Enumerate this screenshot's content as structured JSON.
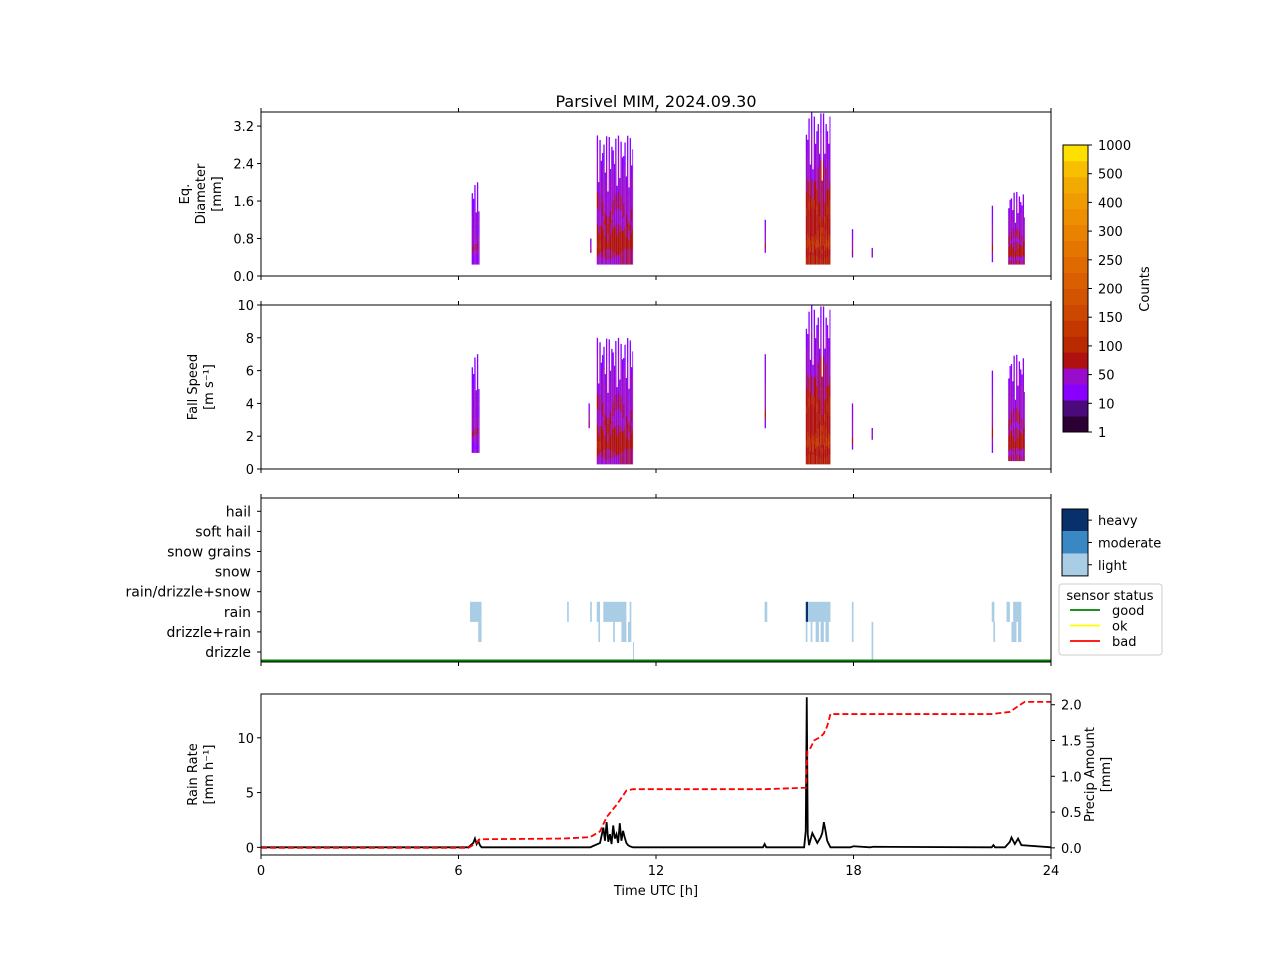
{
  "title": "Parsivel MIM, 2024.09.30",
  "colors": {
    "cmap": [
      "#2d0033",
      "#4a0a7a",
      "#8a00ff",
      "#9a0ccc",
      "#b01010",
      "#b92a00",
      "#c43800",
      "#cc4700",
      "#d35400",
      "#d95f00",
      "#df6a00",
      "#e47600",
      "#e98200",
      "#ed8f00",
      "#f09c00",
      "#f3aa00",
      "#f7bf00",
      "#fde000"
    ],
    "intensity": {
      "light": "#a8cde4",
      "moderate": "#3a88c3",
      "heavy": "#08306b"
    },
    "status": {
      "good": "#008000",
      "ok": "#ffff00",
      "bad": "#ff0000"
    },
    "rain_rate_line": "#000000",
    "precip_amount_line": "#ff0000"
  },
  "colorbar": {
    "label": "Counts",
    "ticks": [
      "1",
      "10",
      "50",
      "100",
      "150",
      "200",
      "250",
      "300",
      "400",
      "500",
      "1000"
    ]
  },
  "intensity_legend": {
    "labels": [
      "heavy",
      "moderate",
      "light"
    ]
  },
  "status_legend": {
    "title": "sensor status",
    "labels": [
      "good",
      "ok",
      "bad"
    ]
  },
  "chart_data": [
    {
      "type": "heatmap",
      "panel": "eq-diameter",
      "ylabel": [
        "Eq.",
        "Diameter",
        "[mm]"
      ],
      "xlim": [
        0,
        24
      ],
      "ylim": [
        0,
        3.5
      ],
      "yticks": [
        "0.0",
        "0.8",
        "1.6",
        "2.4",
        "3.2"
      ],
      "events": [
        {
          "t0": 6.4,
          "t1": 6.65,
          "vmin": 0.25,
          "vmax": 2.0,
          "level": 3
        },
        {
          "t0": 10.0,
          "t1": 10.05,
          "vmin": 0.5,
          "vmax": 0.8,
          "level": 3
        },
        {
          "t0": 10.2,
          "t1": 11.3,
          "vmin": 0.25,
          "vmax": 3.0,
          "level": 4
        },
        {
          "t0": 15.3,
          "t1": 15.35,
          "vmin": 0.5,
          "vmax": 1.2,
          "level": 3
        },
        {
          "t0": 16.55,
          "t1": 17.3,
          "vmin": 0.25,
          "vmax": 3.5,
          "level": 5
        },
        {
          "t0": 17.95,
          "t1": 18.0,
          "vmin": 0.4,
          "vmax": 1.0,
          "level": 3
        },
        {
          "t0": 18.55,
          "t1": 18.6,
          "vmin": 0.4,
          "vmax": 0.6,
          "level": 3
        },
        {
          "t0": 22.2,
          "t1": 22.25,
          "vmin": 0.3,
          "vmax": 1.5,
          "level": 3
        },
        {
          "t0": 22.7,
          "t1": 23.2,
          "vmin": 0.25,
          "vmax": 1.8,
          "level": 4
        }
      ]
    },
    {
      "type": "heatmap",
      "panel": "fall-speed",
      "ylabel": [
        "Fall Speed",
        "[m s⁻¹]"
      ],
      "xlim": [
        0,
        24
      ],
      "ylim": [
        0,
        10
      ],
      "yticks": [
        "0",
        "2",
        "4",
        "6",
        "8",
        "10"
      ],
      "events": [
        {
          "t0": 6.4,
          "t1": 6.65,
          "vmin": 1.0,
          "vmax": 7.0,
          "level": 3
        },
        {
          "t0": 9.95,
          "t1": 10.0,
          "vmin": 2.5,
          "vmax": 4.0,
          "level": 3
        },
        {
          "t0": 10.2,
          "t1": 11.3,
          "vmin": 0.3,
          "vmax": 8.0,
          "level": 4
        },
        {
          "t0": 15.3,
          "t1": 15.35,
          "vmin": 2.5,
          "vmax": 7.0,
          "level": 3
        },
        {
          "t0": 16.55,
          "t1": 17.3,
          "vmin": 0.3,
          "vmax": 10.0,
          "level": 5
        },
        {
          "t0": 17.95,
          "t1": 18.0,
          "vmin": 1.2,
          "vmax": 4.0,
          "level": 3
        },
        {
          "t0": 18.55,
          "t1": 18.6,
          "vmin": 1.8,
          "vmax": 2.5,
          "level": 3
        },
        {
          "t0": 22.2,
          "t1": 22.25,
          "vmin": 1.0,
          "vmax": 6.0,
          "level": 3
        },
        {
          "t0": 22.7,
          "t1": 23.2,
          "vmin": 0.5,
          "vmax": 7.0,
          "level": 4
        }
      ]
    },
    {
      "type": "heatmap",
      "panel": "precip-type",
      "categories": [
        "drizzle",
        "drizzle+rain",
        "rain",
        "rain/drizzle+snow",
        "snow",
        "snow grains",
        "soft hail",
        "hail"
      ],
      "xlim": [
        0,
        24
      ],
      "blocks": [
        {
          "cat": "rain",
          "t0": 6.35,
          "t1": 6.7,
          "level": "light"
        },
        {
          "cat": "drizzle+rain",
          "t0": 6.6,
          "t1": 6.7,
          "level": "light"
        },
        {
          "cat": "rain",
          "t0": 9.3,
          "t1": 9.35,
          "level": "light"
        },
        {
          "cat": "rain",
          "t0": 10.0,
          "t1": 10.05,
          "level": "light"
        },
        {
          "cat": "rain",
          "t0": 10.2,
          "t1": 10.3,
          "level": "light"
        },
        {
          "cat": "rain",
          "t0": 10.4,
          "t1": 11.1,
          "level": "light"
        },
        {
          "cat": "rain",
          "t0": 11.2,
          "t1": 11.25,
          "level": "light"
        },
        {
          "cat": "drizzle+rain",
          "t0": 10.25,
          "t1": 10.3,
          "level": "light"
        },
        {
          "cat": "drizzle+rain",
          "t0": 10.7,
          "t1": 10.75,
          "level": "light"
        },
        {
          "cat": "drizzle+rain",
          "t0": 10.95,
          "t1": 11.1,
          "level": "light"
        },
        {
          "cat": "drizzle+rain",
          "t0": 11.15,
          "t1": 11.25,
          "level": "light"
        },
        {
          "cat": "drizzle",
          "t0": 11.3,
          "t1": 11.33,
          "level": "light"
        },
        {
          "cat": "rain",
          "t0": 15.3,
          "t1": 15.38,
          "level": "light"
        },
        {
          "cat": "rain",
          "t0": 16.55,
          "t1": 16.62,
          "level": "heavy"
        },
        {
          "cat": "rain",
          "t0": 16.62,
          "t1": 17.3,
          "level": "light"
        },
        {
          "cat": "drizzle+rain",
          "t0": 16.55,
          "t1": 16.6,
          "level": "light"
        },
        {
          "cat": "drizzle+rain",
          "t0": 16.7,
          "t1": 16.75,
          "level": "light"
        },
        {
          "cat": "drizzle+rain",
          "t0": 16.85,
          "t1": 16.95,
          "level": "light"
        },
        {
          "cat": "drizzle+rain",
          "t0": 17.0,
          "t1": 17.1,
          "level": "light"
        },
        {
          "cat": "drizzle+rain",
          "t0": 17.15,
          "t1": 17.25,
          "level": "light"
        },
        {
          "cat": "rain",
          "t0": 17.95,
          "t1": 18.0,
          "level": "light"
        },
        {
          "cat": "drizzle+rain",
          "t0": 17.95,
          "t1": 18.0,
          "level": "light"
        },
        {
          "cat": "drizzle+rain",
          "t0": 18.55,
          "t1": 18.6,
          "level": "light"
        },
        {
          "cat": "drizzle",
          "t0": 18.55,
          "t1": 18.6,
          "level": "light"
        },
        {
          "cat": "rain",
          "t0": 22.2,
          "t1": 22.28,
          "level": "light"
        },
        {
          "cat": "drizzle+rain",
          "t0": 22.25,
          "t1": 22.3,
          "level": "light"
        },
        {
          "cat": "rain",
          "t0": 22.65,
          "t1": 22.75,
          "level": "light"
        },
        {
          "cat": "rain",
          "t0": 22.85,
          "t1": 23.1,
          "level": "light"
        },
        {
          "cat": "drizzle+rain",
          "t0": 22.8,
          "t1": 22.95,
          "level": "light"
        },
        {
          "cat": "drizzle+rain",
          "t0": 23.0,
          "t1": 23.1,
          "level": "light"
        }
      ],
      "status_line": {
        "status": "good",
        "t0": 0,
        "t1": 24
      }
    },
    {
      "type": "line",
      "panel": "rain-rate",
      "xlabel": "Time UTC [h]",
      "ylabel": [
        "Rain Rate",
        "[mm h⁻¹]"
      ],
      "y2label": [
        "Precip Amount",
        "[mm]"
      ],
      "xlim": [
        0,
        24
      ],
      "ylim": [
        -0.7,
        14
      ],
      "y2lim": [
        -0.1,
        2.15
      ],
      "xticks": [
        "0",
        "6",
        "12",
        "18",
        "24"
      ],
      "yticks": [
        "0",
        "5",
        "10"
      ],
      "y2ticks": [
        "0.0",
        "0.5",
        "1.0",
        "1.5",
        "2.0"
      ],
      "series": [
        {
          "name": "Rain Rate",
          "axis": "left",
          "style": "solid",
          "x": [
            0,
            6.3,
            6.45,
            6.5,
            6.55,
            6.6,
            6.65,
            6.7,
            10.0,
            10.3,
            10.4,
            10.45,
            10.5,
            10.55,
            10.6,
            10.65,
            10.7,
            10.75,
            10.8,
            10.85,
            10.9,
            10.95,
            11.0,
            11.05,
            11.1,
            11.15,
            11.2,
            11.3,
            15.25,
            15.3,
            15.35,
            16.5,
            16.55,
            16.58,
            16.61,
            16.65,
            16.75,
            16.85,
            16.9,
            17.0,
            17.05,
            17.1,
            17.15,
            17.2,
            17.25,
            17.3,
            17.9,
            18.0,
            18.5,
            18.6,
            22.2,
            22.25,
            22.3,
            22.6,
            22.75,
            22.8,
            22.9,
            23.0,
            23.1,
            24
          ],
          "y": [
            0,
            0,
            0.4,
            0.8,
            0.3,
            0.6,
            0.2,
            0,
            0,
            0.4,
            1.8,
            0.6,
            2.3,
            0.5,
            1.2,
            0.3,
            2.0,
            0.8,
            1.2,
            0.4,
            2.2,
            0.6,
            1.5,
            0.9,
            0.4,
            0.2,
            0.1,
            0,
            0,
            0.3,
            0,
            0,
            1.5,
            13.7,
            1.2,
            0.2,
            1.3,
            0.7,
            0.4,
            0.9,
            1.3,
            2.3,
            1.5,
            0.6,
            0.3,
            0,
            0,
            0.1,
            0,
            0.05,
            0,
            0.2,
            0,
            0,
            0.5,
            0.9,
            0.3,
            0.8,
            0.2,
            0
          ]
        },
        {
          "name": "Precip Amount",
          "axis": "right",
          "style": "dashed",
          "x": [
            0,
            6.3,
            6.55,
            6.65,
            9.2,
            10.0,
            10.3,
            10.5,
            10.8,
            11.0,
            11.1,
            11.3,
            15.3,
            16.55,
            16.6,
            16.7,
            16.8,
            17.0,
            17.1,
            17.2,
            17.3,
            22.2,
            22.75,
            23.0,
            23.2,
            24
          ],
          "y": [
            0,
            0,
            0.07,
            0.12,
            0.13,
            0.15,
            0.23,
            0.43,
            0.6,
            0.73,
            0.8,
            0.82,
            0.82,
            0.84,
            1.35,
            1.4,
            1.5,
            1.55,
            1.6,
            1.7,
            1.87,
            1.87,
            1.9,
            1.98,
            2.04,
            2.04
          ]
        }
      ]
    }
  ]
}
